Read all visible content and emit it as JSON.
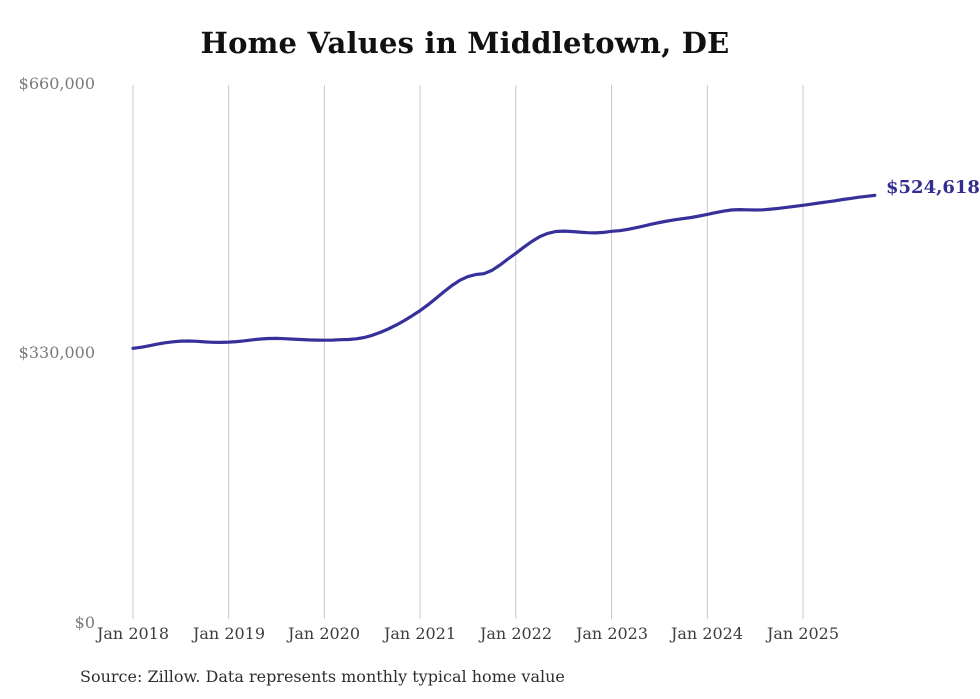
{
  "title": "Home Values in Middletown, DE",
  "source_note": "Source: Zillow. Data represents monthly typical home value",
  "end_label": "$524,618",
  "colors": {
    "background": "#ffffff",
    "line": "#36309b",
    "grid": "#cacaca",
    "title": "#111111",
    "y_tick": "#7a7a7a",
    "x_tick": "#3d3d3d",
    "end_label": "#332d8f",
    "source": "#2e2e2e"
  },
  "chart_data": {
    "type": "line",
    "title": "Home Values in Middletown, DE",
    "xlabel": "",
    "ylabel": "",
    "unit": "USD",
    "ylim": [
      0,
      660000
    ],
    "grid": "vertical-only",
    "legend_position": "none",
    "y_tick_labels": [
      "$660,000",
      "$330,000",
      "$0"
    ],
    "y_tick_values": [
      660000,
      330000,
      0
    ],
    "x_tick_labels": [
      "Jan 2018",
      "Jan 2019",
      "Jan 2020",
      "Jan 2021",
      "Jan 2022",
      "Jan 2023",
      "Jan 2024",
      "Jan 2025"
    ],
    "series_name": "Typical home value",
    "end_value": 524618,
    "months": [
      "2018-01",
      "2018-02",
      "2018-03",
      "2018-04",
      "2018-05",
      "2018-06",
      "2018-07",
      "2018-08",
      "2018-09",
      "2018-10",
      "2018-11",
      "2018-12",
      "2019-01",
      "2019-02",
      "2019-03",
      "2019-04",
      "2019-05",
      "2019-06",
      "2019-07",
      "2019-08",
      "2019-09",
      "2019-10",
      "2019-11",
      "2019-12",
      "2020-01",
      "2020-02",
      "2020-03",
      "2020-04",
      "2020-05",
      "2020-06",
      "2020-07",
      "2020-08",
      "2020-09",
      "2020-10",
      "2020-11",
      "2020-12",
      "2021-01",
      "2021-02",
      "2021-03",
      "2021-04",
      "2021-05",
      "2021-06",
      "2021-07",
      "2021-08",
      "2021-09",
      "2021-10",
      "2021-11",
      "2021-12",
      "2022-01",
      "2022-02",
      "2022-03",
      "2022-04",
      "2022-05",
      "2022-06",
      "2022-07",
      "2022-08",
      "2022-09",
      "2022-10",
      "2022-11",
      "2022-12",
      "2023-01",
      "2023-02",
      "2023-03",
      "2023-04",
      "2023-05",
      "2023-06",
      "2023-07",
      "2023-08",
      "2023-09",
      "2023-10",
      "2023-11",
      "2023-12",
      "2024-01",
      "2024-02",
      "2024-03",
      "2024-04",
      "2024-05",
      "2024-06",
      "2024-07",
      "2024-08",
      "2024-09",
      "2024-10",
      "2024-11",
      "2024-12",
      "2025-01",
      "2025-02",
      "2025-03",
      "2025-04",
      "2025-05",
      "2025-06",
      "2025-07",
      "2025-08",
      "2025-09",
      "2025-10"
    ],
    "values": [
      337000,
      338200,
      340000,
      342000,
      343800,
      345000,
      345800,
      346000,
      345600,
      344900,
      344300,
      344200,
      344600,
      345200,
      346200,
      347400,
      348400,
      349000,
      349100,
      348800,
      348300,
      347800,
      347300,
      347000,
      346900,
      347100,
      347500,
      347800,
      348600,
      350300,
      353000,
      356500,
      360700,
      365500,
      371000,
      377000,
      383200,
      390500,
      398500,
      406500,
      414000,
      420500,
      425000,
      427500,
      428500,
      432500,
      439000,
      446500,
      453500,
      461000,
      468000,
      474000,
      478000,
      480300,
      480800,
      480300,
      479500,
      478800,
      478500,
      479200,
      480500,
      481300,
      482800,
      484800,
      486900,
      489200,
      491300,
      493100,
      494700,
      496100,
      497500,
      499300,
      501300,
      503400,
      505200,
      506600,
      507200,
      506900,
      506600,
      506900,
      507700,
      508800,
      510000,
      511200,
      512400,
      513800,
      515200,
      516600,
      518000,
      519500,
      520900,
      522300,
      523500,
      524618
    ]
  }
}
